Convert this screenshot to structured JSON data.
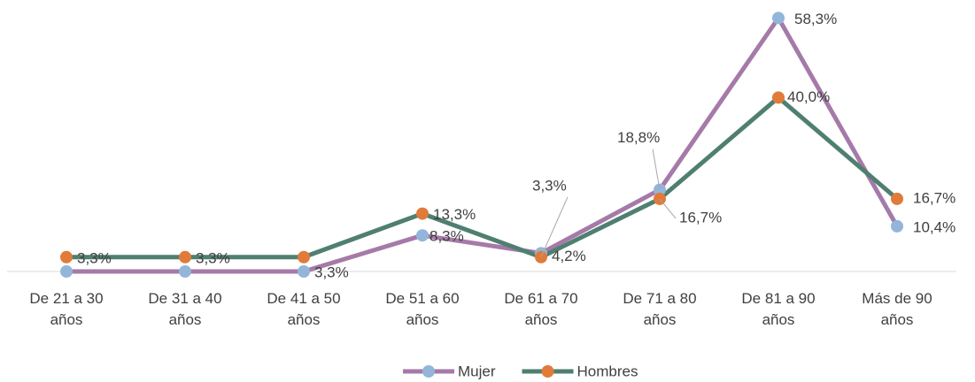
{
  "chart_data": {
    "type": "line",
    "categories": [
      "De 21 a 30 años",
      "De 31 a 40 años",
      "De 41 a 50 años",
      "De 51 a 60 años",
      "De 61 a 70 años",
      "De 71 a 80 años",
      "De 81 a 90 años",
      "Más de 90 años"
    ],
    "series": [
      {
        "name": "Mujer",
        "color": "#a57aa8",
        "marker_color": "#93b5da",
        "values": [
          0,
          0,
          0,
          8.3,
          4.2,
          18.8,
          58.3,
          10.4
        ],
        "value_labels": [
          null,
          null,
          null,
          "8,3%",
          "4,2%",
          "18,8%",
          "58,3%",
          "10,4%"
        ]
      },
      {
        "name": "Hombres",
        "color": "#4f7f71",
        "marker_color": "#e07b39",
        "values": [
          3.3,
          3.3,
          3.3,
          13.3,
          3.3,
          16.7,
          40.0,
          16.7
        ],
        "value_labels": [
          "3,3%",
          "3,3%",
          "3,3%",
          "13,3%",
          "3,3%",
          "16,7%",
          "40,0%",
          "16,7%"
        ]
      }
    ],
    "ylim": [
      0,
      60
    ],
    "legend": "bottom"
  }
}
